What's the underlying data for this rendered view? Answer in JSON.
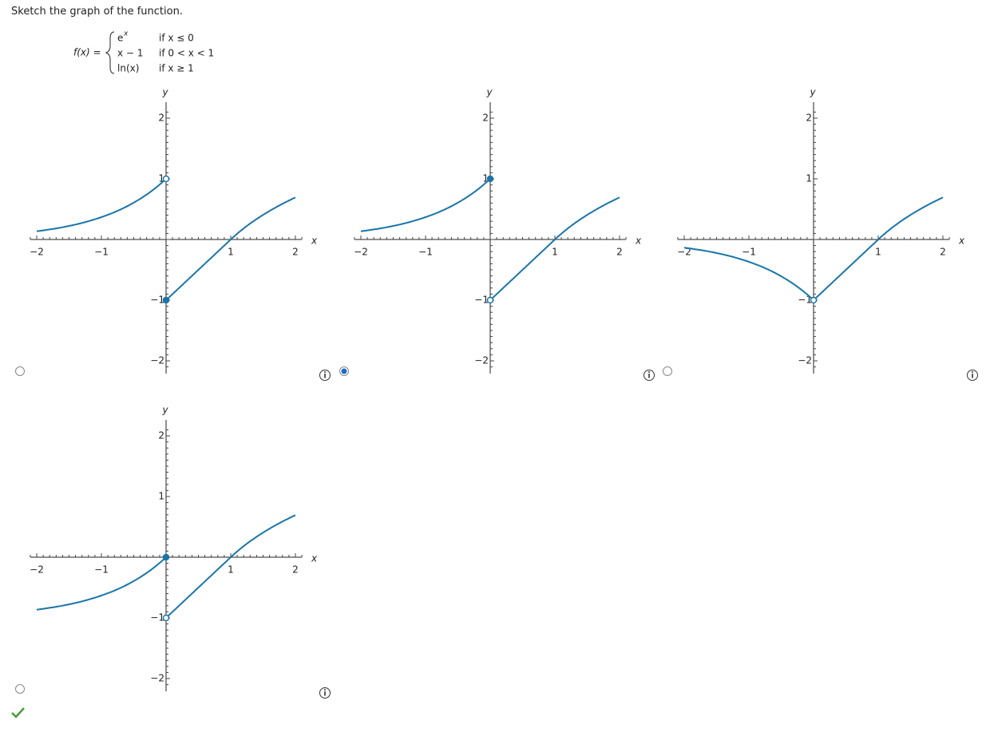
{
  "prompt": "Sketch the graph of the function.",
  "function": {
    "name": "f(x) =",
    "pieces": [
      {
        "expr": "e",
        "sup": "x",
        "cond": "if x ≤ 0"
      },
      {
        "expr": "x − 1",
        "cond": "if 0 < x < 1"
      },
      {
        "expr": "ln(x)",
        "cond": "if x ≥ 1"
      }
    ]
  },
  "axes": {
    "x_label": "x",
    "y_label": "y",
    "xticks": [
      {
        "value": -2,
        "label": "−2"
      },
      {
        "value": -1,
        "label": "−1"
      },
      1,
      2
    ],
    "yticks": [
      2,
      1,
      {
        "value": -1,
        "label": "−1"
      },
      {
        "value": -2,
        "label": "−2"
      }
    ]
  },
  "options": [
    {
      "selected": false
    },
    {
      "selected": true
    },
    {
      "selected": false
    },
    {
      "selected": false
    }
  ]
}
